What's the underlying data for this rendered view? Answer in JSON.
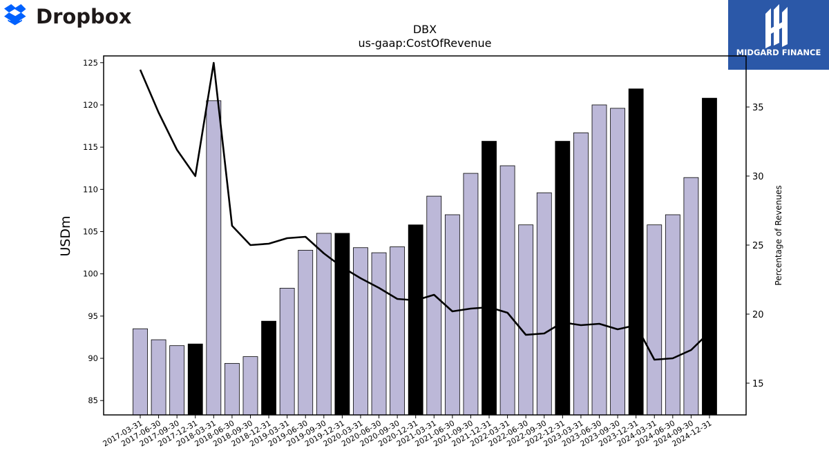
{
  "branding": {
    "company_logo_text": "Dropbox",
    "publisher_logo_text": "MIDGARD FINANCE",
    "dropbox_blue": "#0061fe",
    "publisher_bg": "#2b58a8"
  },
  "chart_data": {
    "type": "bar",
    "title": "DBX",
    "subtitle": "us-gaap:CostOfRevenue",
    "ylabel": "USDm",
    "y2label": "Percentage of Revenues",
    "ylim": [
      83.3,
      125.8
    ],
    "y2lim": [
      12.7,
      38.7
    ],
    "yticks": [
      85,
      90,
      95,
      100,
      105,
      110,
      115,
      120,
      125
    ],
    "y2ticks": [
      15,
      20,
      25,
      30,
      35
    ],
    "grid": false,
    "categories": [
      "2017-03-31",
      "2017-06-30",
      "2017-09-30",
      "2017-12-31",
      "2018-03-31",
      "2018-06-30",
      "2018-09-30",
      "2018-12-31",
      "2019-03-31",
      "2019-06-30",
      "2019-09-30",
      "2019-12-31",
      "2020-03-31",
      "2020-06-30",
      "2020-09-30",
      "2020-12-31",
      "2021-03-31",
      "2021-06-30",
      "2021-09-30",
      "2021-12-31",
      "2022-03-31",
      "2022-06-30",
      "2022-09-30",
      "2022-12-31",
      "2023-03-31",
      "2023-06-30",
      "2023-09-30",
      "2023-12-31",
      "2024-03-31",
      "2024-06-30",
      "2024-09-30",
      "2024-12-31"
    ],
    "series": [
      {
        "kind": "bar",
        "axis": "left",
        "values": [
          93.5,
          92.2,
          91.5,
          91.7,
          120.5,
          89.4,
          90.2,
          94.4,
          98.3,
          102.8,
          104.8,
          104.8,
          103.1,
          102.5,
          103.2,
          105.8,
          109.2,
          107.0,
          111.9,
          115.7,
          112.8,
          105.8,
          109.6,
          115.7,
          116.7,
          120.0,
          119.6,
          121.9,
          105.8,
          107.0,
          111.4,
          120.8
        ],
        "highlight": [
          false,
          false,
          false,
          true,
          false,
          false,
          false,
          true,
          false,
          false,
          false,
          true,
          false,
          false,
          false,
          true,
          false,
          false,
          false,
          true,
          false,
          false,
          false,
          true,
          false,
          false,
          false,
          true,
          false,
          false,
          false,
          true
        ]
      },
      {
        "kind": "line",
        "axis": "right",
        "values": [
          37.7,
          34.6,
          31.9,
          30.0,
          38.2,
          26.4,
          25.0,
          25.1,
          25.5,
          25.6,
          24.4,
          23.4,
          22.6,
          21.9,
          21.1,
          21.0,
          21.4,
          20.2,
          20.4,
          20.5,
          20.1,
          18.5,
          18.6,
          19.4,
          19.2,
          19.3,
          18.9,
          19.2,
          16.7,
          16.8,
          17.4,
          18.7
        ]
      }
    ],
    "colors": {
      "bar_regular": "#bcb8d8",
      "bar_highlight": "#000000",
      "line": "#000000"
    }
  }
}
